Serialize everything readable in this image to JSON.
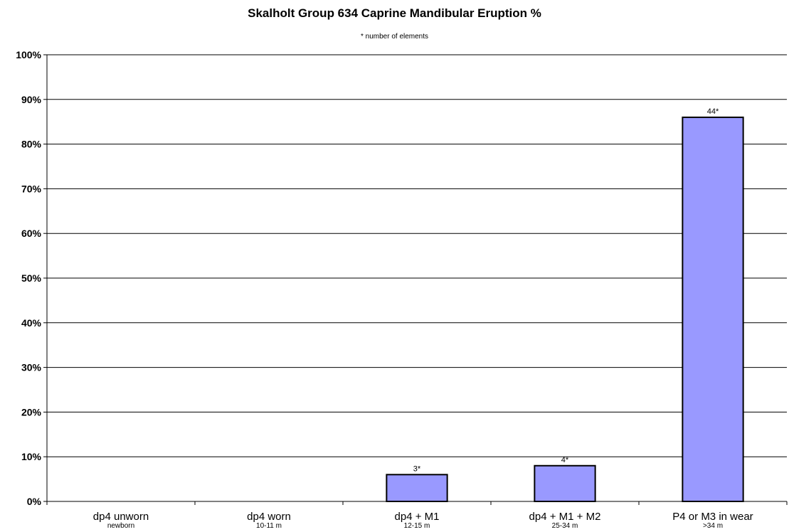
{
  "chart_data": {
    "type": "bar",
    "title": "Skalholt Group 634 Caprine Mandibular Eruption %",
    "subtitle": "* number of elements",
    "xlabel": "",
    "ylabel": "",
    "ylim": [
      0,
      100
    ],
    "yticks": [
      0,
      10,
      20,
      30,
      40,
      50,
      60,
      70,
      80,
      90,
      100
    ],
    "ytick_labels": [
      "0%",
      "10%",
      "20%",
      "30%",
      "40%",
      "50%",
      "60%",
      "70%",
      "80%",
      "90%",
      "100%"
    ],
    "categories": [
      "dp4 unworn",
      "dp4 worn",
      "dp4 + M1",
      "dp4 + M1 + M2",
      "P4 or M3 in wear"
    ],
    "category_sublabels": [
      "newborn",
      "10-11 m",
      "12-15 m",
      "25-34 m",
      ">34 m"
    ],
    "values": [
      0,
      0,
      6,
      8,
      86
    ],
    "data_labels": [
      "",
      "",
      "3*",
      "4*",
      "44*"
    ],
    "grid": true,
    "legend": "none",
    "bar_color": "#9999ff",
    "bar_edge_color": "#000000",
    "grid_color": "#000000"
  }
}
